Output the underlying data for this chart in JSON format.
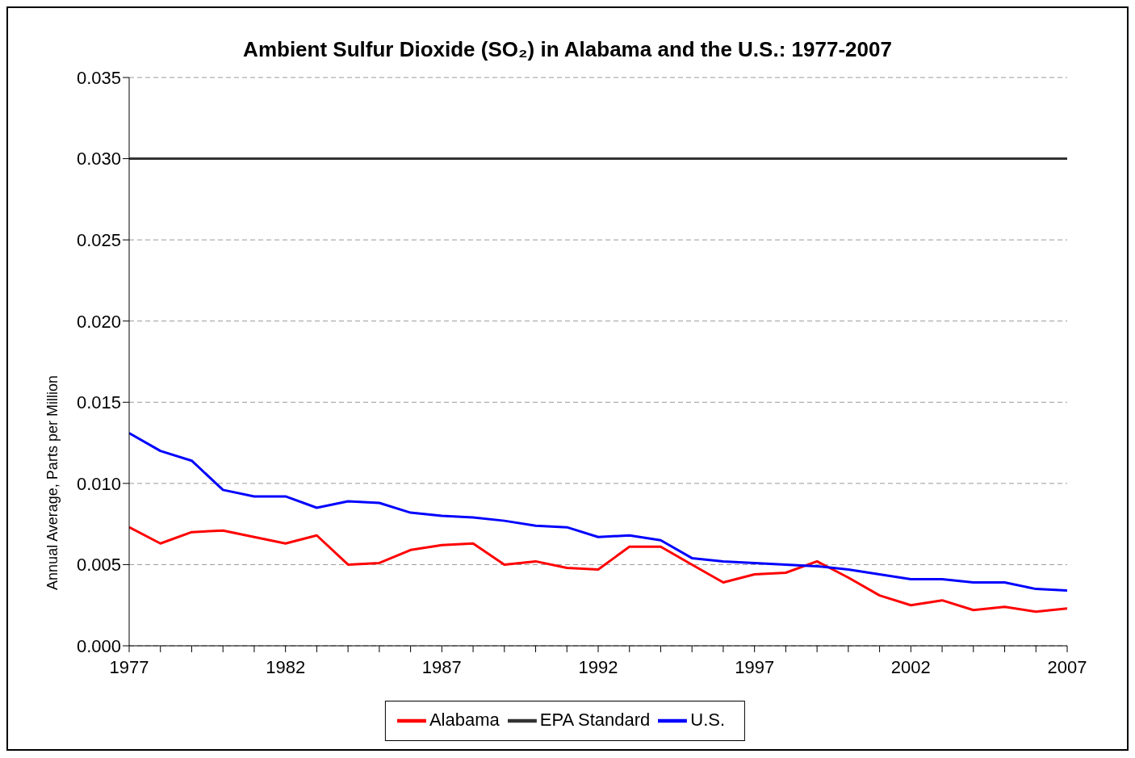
{
  "chart_data": {
    "type": "line",
    "title": "Ambient Sulfur Dioxide (SO₂) in Alabama and the U.S.: 1977-2007",
    "ylabel": "Annual Average, Parts per Million",
    "x": [
      1977,
      1978,
      1979,
      1980,
      1981,
      1982,
      1983,
      1984,
      1985,
      1986,
      1987,
      1988,
      1989,
      1990,
      1991,
      1992,
      1993,
      1994,
      1995,
      1996,
      1997,
      1998,
      1999,
      2000,
      2001,
      2002,
      2003,
      2004,
      2005,
      2006,
      2007
    ],
    "series": [
      {
        "name": "Alabama",
        "color": "#ff0000",
        "values": [
          0.0073,
          0.0063,
          0.007,
          0.0071,
          0.0067,
          0.0063,
          0.0068,
          0.005,
          0.0051,
          0.0059,
          0.0062,
          0.0063,
          0.005,
          0.0052,
          0.0048,
          0.0047,
          0.0061,
          0.0061,
          0.005,
          0.0039,
          0.0044,
          0.0045,
          0.0052,
          0.0042,
          0.0031,
          0.0025,
          0.0028,
          0.0022,
          0.0024,
          0.0021,
          0.0023
        ]
      },
      {
        "name": "U.S.",
        "color": "#0000ff",
        "values": [
          0.0131,
          0.012,
          0.0114,
          0.0096,
          0.0092,
          0.0092,
          0.0085,
          0.0089,
          0.0088,
          0.0082,
          0.008,
          0.0079,
          0.0077,
          0.0074,
          0.0073,
          0.0067,
          0.0068,
          0.0065,
          0.0054,
          0.0052,
          0.0051,
          0.005,
          0.0049,
          0.0047,
          0.0044,
          0.0041,
          0.0041,
          0.0039,
          0.0039,
          0.0035,
          0.0034
        ]
      },
      {
        "name": "EPA Standard",
        "color": "#333333",
        "values": [
          0.03,
          0.03,
          0.03,
          0.03,
          0.03,
          0.03,
          0.03,
          0.03,
          0.03,
          0.03,
          0.03,
          0.03,
          0.03,
          0.03,
          0.03,
          0.03,
          0.03,
          0.03,
          0.03,
          0.03,
          0.03,
          0.03,
          0.03,
          0.03,
          0.03,
          0.03,
          0.03,
          0.03,
          0.03,
          0.03,
          0.03
        ]
      }
    ],
    "xlim": [
      1977,
      2007
    ],
    "xticks": [
      1977,
      {
        "value": 1978,
        "label": null
      },
      {
        "value": 1979,
        "label": null
      },
      {
        "value": 1980,
        "label": null
      },
      {
        "value": 1981,
        "label": null
      },
      1982,
      {
        "value": 1983,
        "label": null
      },
      {
        "value": 1984,
        "label": null
      },
      {
        "value": 1985,
        "label": null
      },
      {
        "value": 1986,
        "label": null
      },
      1987,
      {
        "value": 1988,
        "label": null
      },
      {
        "value": 1989,
        "label": null
      },
      {
        "value": 1990,
        "label": null
      },
      {
        "value": 1991,
        "label": null
      },
      1992,
      {
        "value": 1993,
        "label": null
      },
      {
        "value": 1994,
        "label": null
      },
      {
        "value": 1995,
        "label": null
      },
      {
        "value": 1996,
        "label": null
      },
      1997,
      {
        "value": 1998,
        "label": null
      },
      {
        "value": 1999,
        "label": null
      },
      {
        "value": 2000,
        "label": null
      },
      {
        "value": 2001,
        "label": null
      },
      2002,
      {
        "value": 2003,
        "label": null
      },
      {
        "value": 2004,
        "label": null
      },
      {
        "value": 2005,
        "label": null
      },
      {
        "value": 2006,
        "label": null
      },
      2007
    ],
    "ylim": [
      0,
      0.035
    ],
    "yticks": [
      {
        "value": 0,
        "label": "0.000"
      },
      {
        "value": 0.005,
        "label": "0.005"
      },
      {
        "value": 0.01,
        "label": "0.010"
      },
      {
        "value": 0.015,
        "label": "0.015"
      },
      {
        "value": 0.02,
        "label": "0.020"
      },
      {
        "value": 0.025,
        "label": "0.025"
      },
      {
        "value": 0.03,
        "label": "0.030"
      },
      {
        "value": 0.035,
        "label": "0.035"
      }
    ],
    "grid": "y",
    "legend": "bottom",
    "marker": "none",
    "line_style": "solid"
  }
}
